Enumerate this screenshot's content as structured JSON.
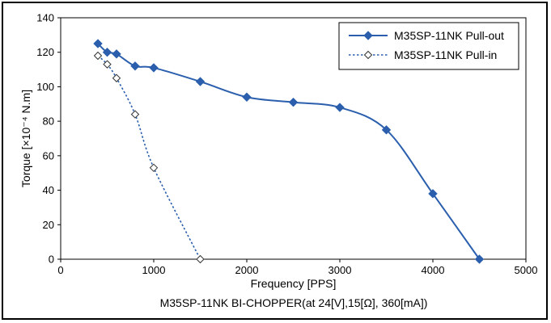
{
  "chart_data": {
    "type": "line",
    "title": "",
    "caption": "M35SP-11NK BI-CHOPPER(at 24[V],15[Ω], 360[mA])",
    "xlabel": "Frequency [PPS]",
    "ylabel": "Torque [×10⁻⁴ N.m]",
    "xlim": [
      0,
      5000
    ],
    "ylim": [
      0,
      140
    ],
    "xticks": [
      0,
      1000,
      2000,
      3000,
      4000,
      5000
    ],
    "yticks": [
      0,
      20,
      40,
      60,
      80,
      100,
      120,
      140
    ],
    "grid": false,
    "legend_position": "top-right",
    "series": [
      {
        "name": "M35SP-11NK Pull-out",
        "color": "#2b5fad",
        "line_style": "solid",
        "marker": "filled-diamond",
        "x": [
          400,
          500,
          600,
          800,
          1000,
          1500,
          2000,
          2500,
          3000,
          3500,
          4000,
          4500
        ],
        "y": [
          125,
          120,
          119,
          112,
          111,
          103,
          94,
          91,
          88,
          75,
          38,
          0
        ]
      },
      {
        "name": "M35SP-11NK Pull-in",
        "color": "#2b5fad",
        "line_style": "dotted",
        "marker": "open-diamond",
        "x": [
          400,
          500,
          600,
          800,
          1000,
          1500
        ],
        "y": [
          118,
          113,
          105,
          84,
          53,
          0
        ]
      }
    ]
  }
}
